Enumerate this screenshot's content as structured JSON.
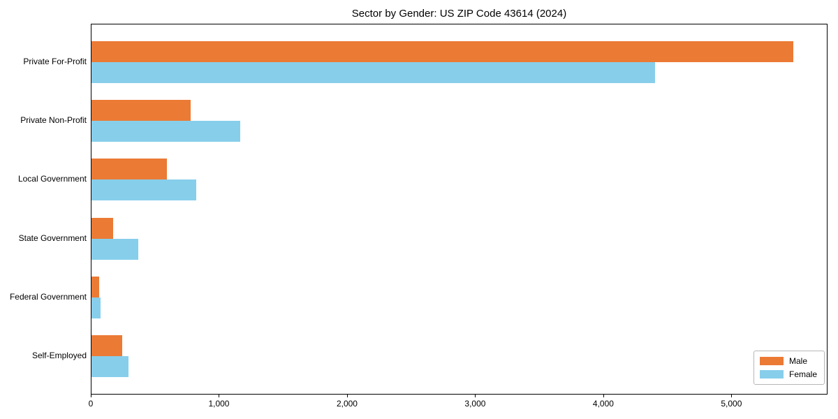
{
  "chart_data": {
    "type": "bar",
    "orientation": "horizontal",
    "title": "Sector by Gender: US ZIP Code 43614 (2024)",
    "categories": [
      "Private For-Profit",
      "Private Non-Profit",
      "Local Government",
      "State Government",
      "Federal Government",
      "Self-Employed"
    ],
    "series": [
      {
        "name": "Male",
        "color": "#EB7A35",
        "values": [
          5480,
          775,
          590,
          170,
          60,
          240
        ]
      },
      {
        "name": "Female",
        "color": "#87CEEB",
        "values": [
          4400,
          1160,
          815,
          365,
          70,
          290
        ]
      }
    ],
    "xlabel": "",
    "ylabel": "",
    "xlim": [
      0,
      5750
    ],
    "xticks": [
      0,
      1000,
      2000,
      3000,
      4000,
      5000
    ],
    "xtick_labels": [
      "0",
      "1,000",
      "2,000",
      "3,000",
      "4,000",
      "5,000"
    ],
    "grid": false,
    "legend_position": "lower right"
  },
  "legend": {
    "items": [
      {
        "label": "Male",
        "color": "#EB7A35"
      },
      {
        "label": "Female",
        "color": "#87CEEB"
      }
    ]
  }
}
